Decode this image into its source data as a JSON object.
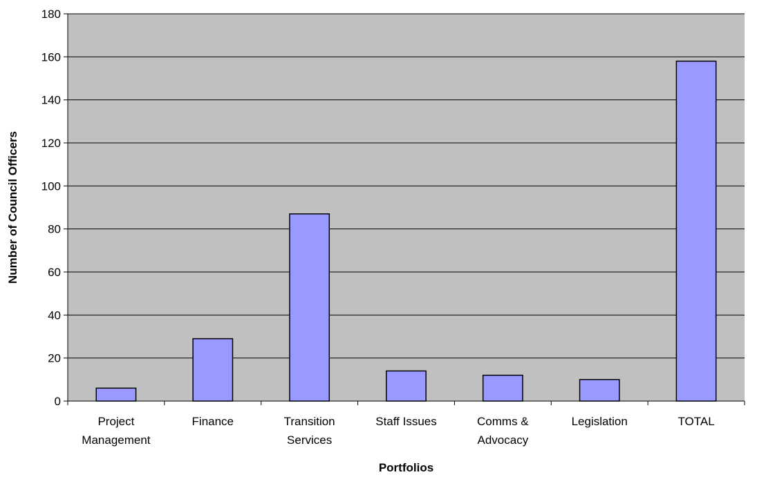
{
  "chart_data": {
    "type": "bar",
    "title": "",
    "xlabel": "Portfolios",
    "ylabel": "Number of Council Officers",
    "ylim": [
      0,
      180
    ],
    "ytick_step": 20,
    "yticks": [
      "0",
      "20",
      "40",
      "60",
      "80",
      "100",
      "120",
      "140",
      "160",
      "180"
    ],
    "grid": true,
    "legend": "none",
    "categories": [
      [
        "Project",
        "Management"
      ],
      [
        "Finance"
      ],
      [
        "Transition",
        "Services"
      ],
      [
        "Staff Issues"
      ],
      [
        "Comms &",
        "Advocacy"
      ],
      [
        "Legislation"
      ],
      [
        "TOTAL"
      ]
    ],
    "values": [
      6,
      29,
      87,
      14,
      12,
      10,
      158
    ],
    "colors": {
      "plot_background": "#c0c0c0",
      "bar_fill": "#9999ff",
      "bar_stroke": "#000000",
      "gridline": "#000000"
    }
  }
}
